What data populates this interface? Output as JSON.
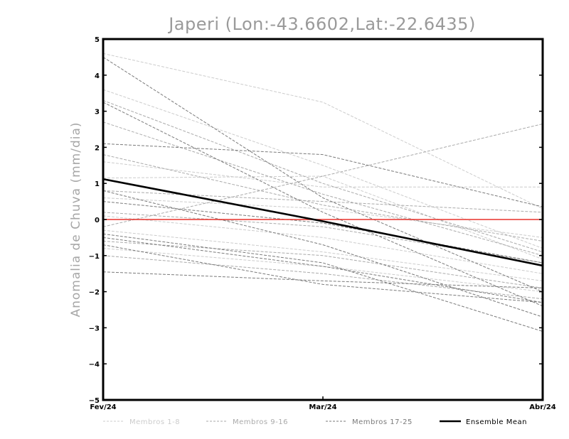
{
  "chart_data": {
    "type": "line",
    "title": "Japeri (Lon:-43.6602,Lat:-22.6435)",
    "xlabel": "",
    "ylabel": "Anomalia de Chuva (mm/dia)",
    "categories": [
      "Fev/24",
      "Mar/24",
      "Abr/24"
    ],
    "ylim": [
      -5,
      5
    ],
    "yticks": [
      -5,
      -4,
      -3,
      -2,
      -1,
      0,
      1,
      2,
      3,
      4,
      5
    ],
    "reference_line": {
      "value": 0,
      "color": "#e8322b"
    },
    "legend": [
      {
        "label": "Membros 1-8",
        "color": "#cccccc"
      },
      {
        "label": "Membros 9-16",
        "color": "#aaaaaa"
      },
      {
        "label": "Membros 17-25",
        "color": "#7a7a7a"
      },
      {
        "label": "Ensemble Mean",
        "color": "#000000"
      }
    ],
    "series": [
      {
        "name": "Membro 1",
        "group": 0,
        "values": [
          4.6,
          3.25,
          0.3
        ]
      },
      {
        "name": "Membro 2",
        "group": 0,
        "values": [
          3.6,
          1.5,
          -0.8
        ]
      },
      {
        "name": "Membro 3",
        "group": 0,
        "values": [
          1.6,
          0.9,
          0.9
        ]
      },
      {
        "name": "Membro 4",
        "group": 0,
        "values": [
          1.15,
          1.2,
          -1.1
        ]
      },
      {
        "name": "Membro 5",
        "group": 0,
        "values": [
          0.1,
          -0.5,
          -1.5
        ]
      },
      {
        "name": "Membro 6",
        "group": 0,
        "values": [
          -0.3,
          -0.9,
          -1.7
        ]
      },
      {
        "name": "Membro 7",
        "group": 0,
        "values": [
          -0.8,
          -1.3,
          -2.0
        ]
      },
      {
        "name": "Membro 8",
        "group": 0,
        "values": [
          0.6,
          0.3,
          -0.5
        ]
      },
      {
        "name": "Membro 9",
        "group": 1,
        "values": [
          2.7,
          0.7,
          -1.0
        ]
      },
      {
        "name": "Membro 10",
        "group": 1,
        "values": [
          0.8,
          0.5,
          0.2
        ]
      },
      {
        "name": "Membro 11",
        "group": 1,
        "values": [
          -0.2,
          1.2,
          2.65
        ]
      },
      {
        "name": "Membro 12",
        "group": 1,
        "values": [
          -0.6,
          -1.0,
          -1.9
        ]
      },
      {
        "name": "Membro 13",
        "group": 1,
        "values": [
          1.8,
          0.4,
          -0.6
        ]
      },
      {
        "name": "Membro 14",
        "group": 1,
        "values": [
          0.2,
          -0.2,
          -1.2
        ]
      },
      {
        "name": "Membro 15",
        "group": 1,
        "values": [
          -1.0,
          -1.5,
          -2.2
        ]
      },
      {
        "name": "Membro 16",
        "group": 1,
        "values": [
          3.3,
          1.0,
          -0.9
        ]
      },
      {
        "name": "Membro 17",
        "group": 2,
        "values": [
          4.5,
          0.6,
          -2.0
        ]
      },
      {
        "name": "Membro 18",
        "group": 2,
        "values": [
          2.1,
          1.8,
          0.35
        ]
      },
      {
        "name": "Membro 19",
        "group": 2,
        "values": [
          3.25,
          0.2,
          -2.4
        ]
      },
      {
        "name": "Membro 20",
        "group": 2,
        "values": [
          0.8,
          -0.7,
          -2.7
        ]
      },
      {
        "name": "Membro 21",
        "group": 2,
        "values": [
          -0.4,
          -1.2,
          -3.1
        ]
      },
      {
        "name": "Membro 22",
        "group": 2,
        "values": [
          -0.7,
          -1.8,
          -2.3
        ]
      },
      {
        "name": "Membro 23",
        "group": 2,
        "values": [
          -1.45,
          -1.7,
          -1.9
        ]
      },
      {
        "name": "Membro 24",
        "group": 2,
        "values": [
          -0.5,
          -1.3,
          -2.3
        ]
      },
      {
        "name": "Membro 25",
        "group": 2,
        "values": [
          0.5,
          -0.1,
          -1.2
        ]
      },
      {
        "name": "Ensemble Mean",
        "group": 3,
        "values": [
          1.12,
          -0.05,
          -1.28
        ]
      }
    ]
  }
}
